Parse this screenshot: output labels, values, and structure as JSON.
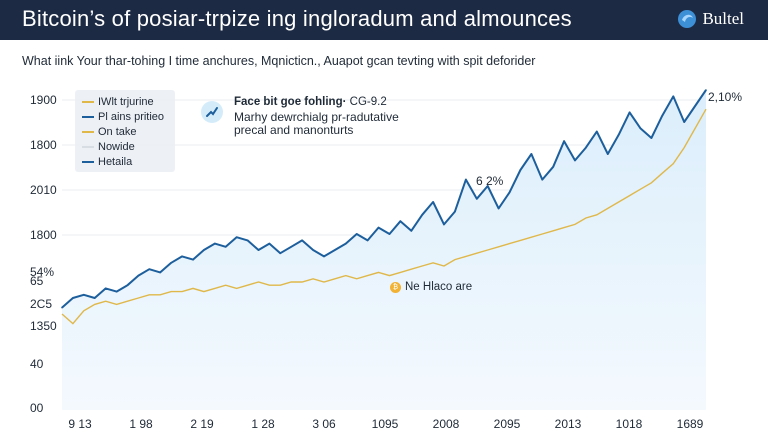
{
  "header": {
    "title": "Bitcoin’s of posiar-trpize ing ingloradum and almounces",
    "brand_name": "Bultel",
    "background": "#1d2a44"
  },
  "subtitle": "What iink Your thar-tohing I time anchures, Mqnicticn., Auapot gcan tevting with spit deforider",
  "legend": {
    "items": [
      {
        "label": "IWlt trjurine",
        "color": "#e0b84a"
      },
      {
        "label": "Pl ains pritieo",
        "color": "#1d5f9c"
      },
      {
        "label": "On take",
        "color": "#e0b84a"
      },
      {
        "label": "Nowide",
        "color": "#d8dde3"
      },
      {
        "label": "Hetaila",
        "color": "#1d5f9c"
      }
    ]
  },
  "annotation": {
    "title_bold": "Face bit goe fohling·",
    "title_rest": "CG-9.2",
    "line1": "Marhy dewrchialg pr-radutative",
    "line2": "precal and manonturts",
    "icon": "trend-line-icon"
  },
  "callout": {
    "text": "Ne Hlaco are",
    "icon": "coin-icon"
  },
  "labels": {
    "peak": "6 2%",
    "last": "2,10%"
  },
  "colors": {
    "primary_line": "#1d5f9c",
    "secondary_line": "#e0b84a",
    "area_fill": "#dbeefb",
    "accent": "#f2b233"
  },
  "chart_data": {
    "type": "line",
    "y_tick_labels": [
      "1900",
      "1800",
      "2010",
      "1800",
      "54%",
      "65",
      "2C5",
      "1350",
      "40",
      "00"
    ],
    "x_tick_labels": [
      "9 13",
      "1 98",
      "2 19",
      "1 28",
      "3 06",
      "1095",
      "2008",
      "2095",
      "2013",
      "1018",
      "1689"
    ],
    "ylim": [
      0,
      100
    ],
    "grid": true,
    "legend_position": "top-left",
    "series": [
      {
        "name": "Pl ains pritieo",
        "values": [
          32,
          35,
          36,
          35,
          38,
          37,
          39,
          42,
          44,
          43,
          46,
          48,
          47,
          50,
          52,
          51,
          54,
          53,
          50,
          52,
          49,
          51,
          53,
          50,
          48,
          50,
          52,
          55,
          53,
          57,
          55,
          59,
          56,
          61,
          65,
          58,
          62,
          72,
          66,
          70,
          63,
          68,
          75,
          80,
          72,
          76,
          84,
          78,
          82,
          87,
          80,
          86,
          93,
          88,
          85,
          92,
          98,
          90,
          95,
          100
        ]
      },
      {
        "name": "IWlt trjurine",
        "values": [
          30,
          27,
          31,
          33,
          34,
          33,
          34,
          35,
          36,
          36,
          37,
          37,
          38,
          37,
          38,
          39,
          38,
          39,
          40,
          39,
          39,
          40,
          40,
          41,
          40,
          41,
          42,
          41,
          42,
          43,
          42,
          43,
          44,
          45,
          46,
          45,
          47,
          48,
          49,
          50,
          51,
          52,
          53,
          54,
          55,
          56,
          57,
          58,
          60,
          61,
          63,
          65,
          67,
          69,
          71,
          74,
          77,
          82,
          88,
          94
        ]
      }
    ]
  }
}
